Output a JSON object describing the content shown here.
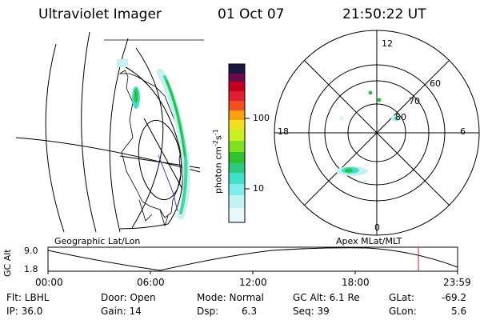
{
  "header": {
    "instrument": "Ultraviolet Imager",
    "date": "01 Oct 07",
    "time": "21:50:22 UT"
  },
  "colorbar": {
    "unit_label": "photon cm",
    "unit_exp1": "-2",
    "unit_mid": "s",
    "unit_exp2": "-1",
    "tick_high": "100",
    "tick_low": "10"
  },
  "panels": {
    "left_title": "Geographic Lat/Lon",
    "right_title": "Apex MLat/MLT"
  },
  "polar_grid": {
    "mlt_top": "12",
    "mlt_left": "18",
    "mlt_right": "6",
    "mlt_bottom": "0",
    "lat_60": "60",
    "lat_70": "70",
    "lat_80": "80"
  },
  "altitude_plot": {
    "ylabel": "GC Alt",
    "ytick_high": "9.0",
    "ytick_low": "1.8",
    "xticks": [
      "00:00",
      "06:00",
      "12:00",
      "18:00",
      "23:59"
    ]
  },
  "status": {
    "filter": "Flt: LBHL",
    "ip": "IP: 36.0",
    "door": "Door: Open",
    "gain": "Gain: 14",
    "mode": "Mode: Normal",
    "dsp_label": "Dsp:",
    "dsp_value": "6.3",
    "gc_alt": "GC Alt: 6.1 Re",
    "seq": "Seq: 39",
    "glat_label": "GLat:",
    "glat_value": "-69.2",
    "glon_label": "GLon:",
    "glon_value": "5.6"
  },
  "colors": {
    "aurora_green": "#33cc33",
    "aurora_cyan": "#40e0c8",
    "haze": "#c8f0f0",
    "marker_red": "#d02020"
  }
}
